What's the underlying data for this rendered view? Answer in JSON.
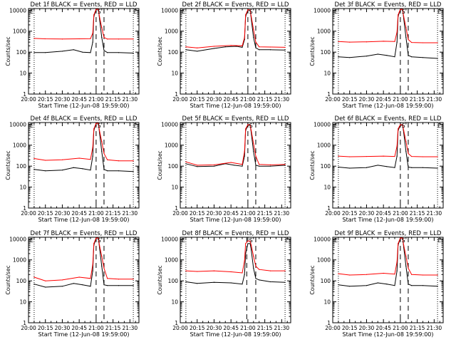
{
  "figure": {
    "ylabel": "Counts/sec",
    "xlabel": "Start Time (12-Jun-08 19:59:00)",
    "xtick_labels": [
      "20:00",
      "20:15",
      "20:30",
      "20:45",
      "21:00",
      "21:15",
      "21:30"
    ],
    "ytick_labels": [
      "1",
      "10",
      "100",
      "1000",
      "10000"
    ],
    "colors": {
      "events": "#000000",
      "lld": "#ff0000",
      "background": "#ffffff"
    },
    "markers": {
      "left": "E",
      "right": "E",
      "saa_symbol": "S"
    }
  },
  "chart_data": [
    {
      "type": "line",
      "title": "Det 1f BLACK = Events, RED = LLD",
      "ylim": [
        1,
        12000
      ],
      "xlim": [
        "20:00",
        "21:38"
      ],
      "y_scale": "log",
      "grid": false,
      "vlines_dotted": [
        "20:05",
        "21:33"
      ],
      "vlines_dashed": [
        "21:00",
        "21:07"
      ],
      "series": [
        {
          "name": "Events",
          "x": [
            "20:05",
            "20:15",
            "20:30",
            "20:40",
            "20:48",
            "20:55",
            "20:57",
            "20:58",
            "21:00",
            "21:02",
            "21:03",
            "21:05",
            "21:07",
            "21:10",
            "21:20",
            "21:33"
          ],
          "values": [
            95,
            95,
            110,
            130,
            100,
            95,
            300,
            5000,
            11000,
            11000,
            4000,
            500,
            120,
            95,
            95,
            90
          ]
        },
        {
          "name": "LLD",
          "x": [
            "20:05",
            "20:15",
            "20:30",
            "20:45",
            "20:55",
            "20:57",
            "20:58",
            "21:00",
            "21:02",
            "21:03",
            "21:05",
            "21:07",
            "21:10",
            "21:20",
            "21:33"
          ],
          "values": [
            450,
            430,
            420,
            430,
            440,
            800,
            6000,
            11000,
            11000,
            5000,
            1500,
            500,
            420,
            420,
            420
          ]
        }
      ]
    },
    {
      "type": "line",
      "title": "Det 2f BLACK = Events, RED = LLD",
      "ylim": [
        1,
        12000
      ],
      "xlim": [
        "20:00",
        "21:38"
      ],
      "y_scale": "log",
      "grid": false,
      "vlines_dotted": [
        "20:05",
        "21:33"
      ],
      "vlines_dashed": [
        "21:00",
        "21:07"
      ],
      "series": [
        {
          "name": "Events",
          "x": [
            "20:05",
            "20:15",
            "20:30",
            "20:40",
            "20:50",
            "20:55",
            "20:57",
            "20:58",
            "21:00",
            "21:02",
            "21:03",
            "21:05",
            "21:07",
            "21:10",
            "21:20",
            "21:33"
          ],
          "values": [
            130,
            110,
            150,
            180,
            190,
            170,
            400,
            5000,
            10000,
            10000,
            4000,
            500,
            160,
            130,
            130,
            125
          ]
        },
        {
          "name": "LLD",
          "x": [
            "20:05",
            "20:15",
            "20:30",
            "20:45",
            "20:55",
            "20:57",
            "20:58",
            "21:00",
            "21:02",
            "21:03",
            "21:05",
            "21:07",
            "21:10",
            "21:20",
            "21:33"
          ],
          "values": [
            180,
            160,
            190,
            210,
            200,
            500,
            6000,
            10500,
            10500,
            5000,
            1200,
            300,
            180,
            175,
            170
          ]
        }
      ]
    },
    {
      "type": "line",
      "title": "Det 3f BLACK = Events, RED = LLD",
      "ylim": [
        1,
        12000
      ],
      "xlim": [
        "20:00",
        "21:38"
      ],
      "y_scale": "log",
      "grid": false,
      "vlines_dotted": [
        "20:05",
        "21:33"
      ],
      "vlines_dashed": [
        "21:00",
        "21:07"
      ],
      "series": [
        {
          "name": "Events",
          "x": [
            "20:05",
            "20:15",
            "20:30",
            "20:40",
            "20:48",
            "20:55",
            "20:57",
            "20:58",
            "21:00",
            "21:02",
            "21:03",
            "21:05",
            "21:07",
            "21:10",
            "21:20",
            "21:33"
          ],
          "values": [
            60,
            55,
            65,
            80,
            70,
            60,
            300,
            5000,
            11000,
            11000,
            4000,
            500,
            70,
            60,
            55,
            50
          ]
        },
        {
          "name": "LLD",
          "x": [
            "20:05",
            "20:15",
            "20:30",
            "20:45",
            "20:55",
            "20:57",
            "20:58",
            "21:00",
            "21:02",
            "21:03",
            "21:05",
            "21:07",
            "21:10",
            "21:20",
            "21:33"
          ],
          "values": [
            320,
            300,
            310,
            330,
            320,
            900,
            6000,
            11000,
            11000,
            5000,
            1500,
            400,
            290,
            280,
            280
          ]
        }
      ]
    },
    {
      "type": "line",
      "title": "Det 4f BLACK = Events, RED = LLD",
      "ylim": [
        1,
        12000
      ],
      "xlim": [
        "20:00",
        "21:38"
      ],
      "y_scale": "log",
      "grid": false,
      "vlines_dotted": [
        "20:05",
        "21:33"
      ],
      "vlines_dashed": [
        "21:00",
        "21:07"
      ],
      "series": [
        {
          "name": "Events",
          "x": [
            "20:05",
            "20:15",
            "20:30",
            "20:40",
            "20:48",
            "20:55",
            "20:57",
            "20:58",
            "21:00",
            "21:02",
            "21:03",
            "21:05",
            "21:07",
            "21:10",
            "21:20",
            "21:33"
          ],
          "values": [
            70,
            60,
            65,
            85,
            75,
            65,
            300,
            5000,
            11000,
            11000,
            4000,
            500,
            70,
            60,
            60,
            55
          ]
        },
        {
          "name": "LLD",
          "x": [
            "20:05",
            "20:15",
            "20:30",
            "20:45",
            "20:55",
            "20:57",
            "20:58",
            "21:00",
            "21:02",
            "21:03",
            "21:05",
            "21:07",
            "21:10",
            "21:20",
            "21:33"
          ],
          "values": [
            230,
            190,
            200,
            240,
            210,
            800,
            6000,
            11000,
            11000,
            5000,
            1500,
            400,
            200,
            180,
            180
          ]
        }
      ]
    },
    {
      "type": "line",
      "title": "Det 5f BLACK = Events, RED = LLD",
      "ylim": [
        1,
        12000
      ],
      "xlim": [
        "20:00",
        "21:38"
      ],
      "y_scale": "log",
      "grid": false,
      "vlines_dotted": [
        "20:05",
        "21:33"
      ],
      "vlines_dashed": [
        "21:00",
        "21:07"
      ],
      "series": [
        {
          "name": "Events",
          "x": [
            "20:05",
            "20:15",
            "20:30",
            "20:40",
            "20:48",
            "20:55",
            "20:57",
            "20:58",
            "21:00",
            "21:02",
            "21:03",
            "21:05",
            "21:07",
            "21:10",
            "21:20",
            "21:33"
          ],
          "values": [
            130,
            95,
            100,
            130,
            110,
            100,
            300,
            5000,
            9000,
            9000,
            4000,
            500,
            110,
            100,
            100,
            110
          ]
        },
        {
          "name": "LLD",
          "x": [
            "20:05",
            "20:15",
            "20:30",
            "20:45",
            "20:55",
            "20:57",
            "20:58",
            "21:00",
            "21:02",
            "21:03",
            "21:05",
            "21:07",
            "21:10",
            "21:20",
            "21:33"
          ],
          "values": [
            160,
            110,
            115,
            150,
            120,
            500,
            6000,
            9500,
            9500,
            5000,
            1200,
            300,
            120,
            115,
            120
          ]
        }
      ]
    },
    {
      "type": "line",
      "title": "Det 6f BLACK = Events, RED = LLD",
      "ylim": [
        1,
        12000
      ],
      "xlim": [
        "20:00",
        "21:38"
      ],
      "y_scale": "log",
      "grid": false,
      "vlines_dotted": [
        "20:05",
        "21:33"
      ],
      "vlines_dashed": [
        "21:00",
        "21:07"
      ],
      "series": [
        {
          "name": "Events",
          "x": [
            "20:05",
            "20:15",
            "20:30",
            "20:40",
            "20:48",
            "20:55",
            "20:57",
            "20:58",
            "21:00",
            "21:02",
            "21:03",
            "21:05",
            "21:07",
            "21:10",
            "21:20",
            "21:33"
          ],
          "values": [
            90,
            80,
            85,
            110,
            95,
            85,
            300,
            5000,
            9000,
            9000,
            4000,
            500,
            90,
            85,
            85,
            80
          ]
        },
        {
          "name": "LLD",
          "x": [
            "20:05",
            "20:15",
            "20:30",
            "20:45",
            "20:55",
            "20:57",
            "20:58",
            "21:00",
            "21:02",
            "21:03",
            "21:05",
            "21:07",
            "21:10",
            "21:20",
            "21:33"
          ],
          "values": [
            300,
            280,
            290,
            300,
            290,
            900,
            6000,
            9500,
            9500,
            5000,
            1500,
            400,
            290,
            280,
            280
          ]
        }
      ]
    },
    {
      "type": "line",
      "title": "Det 7f BLACK = Events, RED = LLD",
      "ylim": [
        1,
        12000
      ],
      "xlim": [
        "20:00",
        "21:38"
      ],
      "y_scale": "log",
      "grid": false,
      "vlines_dotted": [
        "20:05",
        "21:33"
      ],
      "vlines_dashed": [
        "21:00",
        "21:07"
      ],
      "series": [
        {
          "name": "Events",
          "x": [
            "20:05",
            "20:15",
            "20:30",
            "20:40",
            "20:48",
            "20:55",
            "20:57",
            "20:58",
            "21:00",
            "21:02",
            "21:03",
            "21:05",
            "21:07",
            "21:10",
            "21:20",
            "21:33"
          ],
          "values": [
            70,
            50,
            55,
            75,
            65,
            55,
            300,
            5000,
            11000,
            11000,
            4000,
            500,
            65,
            60,
            60,
            60
          ]
        },
        {
          "name": "LLD",
          "x": [
            "20:05",
            "20:15",
            "20:30",
            "20:45",
            "20:55",
            "20:57",
            "20:58",
            "21:00",
            "21:02",
            "21:03",
            "21:05",
            "21:07",
            "21:10",
            "21:20",
            "21:33"
          ],
          "values": [
            150,
            100,
            110,
            150,
            130,
            600,
            6000,
            11000,
            11000,
            5000,
            1500,
            400,
            130,
            120,
            120
          ]
        }
      ]
    },
    {
      "type": "line",
      "title": "Det 8f BLACK = Events, RED = LLD",
      "ylim": [
        1,
        12000
      ],
      "xlim": [
        "20:00",
        "21:38"
      ],
      "y_scale": "log",
      "grid": false,
      "vlines_dotted": [
        "20:05",
        "21:33"
      ],
      "vlines_dashed": [
        "20:59",
        "21:07"
      ],
      "series": [
        {
          "name": "Events",
          "x": [
            "20:05",
            "20:15",
            "20:30",
            "20:45",
            "20:55",
            "20:57",
            "20:58",
            "21:00",
            "21:02",
            "21:03",
            "21:05",
            "21:07",
            "21:10",
            "21:20",
            "21:33"
          ],
          "values": [
            90,
            75,
            85,
            80,
            70,
            200,
            2000,
            6000,
            6000,
            3000,
            400,
            130,
            110,
            90,
            85
          ]
        },
        {
          "name": "LLD",
          "x": [
            "20:05",
            "20:15",
            "20:30",
            "20:45",
            "20:55",
            "20:57",
            "20:58",
            "21:00",
            "21:02",
            "21:03",
            "21:05",
            "21:07",
            "21:10",
            "21:20",
            "21:33"
          ],
          "values": [
            300,
            280,
            300,
            270,
            240,
            900,
            6000,
            8000,
            8000,
            5000,
            1500,
            500,
            350,
            300,
            300
          ]
        }
      ]
    },
    {
      "type": "line",
      "title": "Det 9f BLACK = Events, RED = LLD",
      "ylim": [
        1,
        12000
      ],
      "xlim": [
        "20:00",
        "21:38"
      ],
      "y_scale": "log",
      "grid": false,
      "vlines_dotted": [
        "20:05",
        "21:33"
      ],
      "vlines_dashed": [
        "21:00",
        "21:07"
      ],
      "series": [
        {
          "name": "Events",
          "x": [
            "20:05",
            "20:15",
            "20:30",
            "20:40",
            "20:48",
            "20:55",
            "20:57",
            "20:58",
            "21:00",
            "21:02",
            "21:03",
            "21:05",
            "21:07",
            "21:10",
            "21:20",
            "21:33"
          ],
          "values": [
            65,
            55,
            60,
            80,
            70,
            60,
            300,
            5000,
            11000,
            11000,
            4000,
            500,
            70,
            60,
            60,
            55
          ]
        },
        {
          "name": "LLD",
          "x": [
            "20:05",
            "20:15",
            "20:30",
            "20:45",
            "20:55",
            "20:57",
            "20:58",
            "21:00",
            "21:02",
            "21:03",
            "21:05",
            "21:07",
            "21:10",
            "21:20",
            "21:33"
          ],
          "values": [
            220,
            190,
            200,
            230,
            210,
            800,
            6000,
            11000,
            11000,
            5000,
            1500,
            400,
            200,
            190,
            190
          ]
        }
      ]
    }
  ]
}
